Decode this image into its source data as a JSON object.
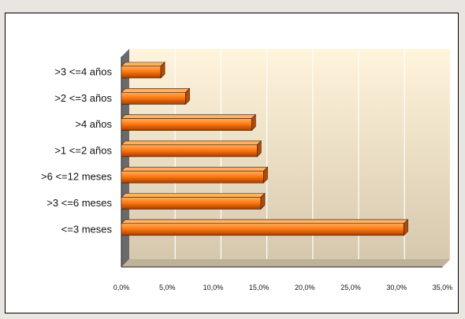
{
  "chart_data": {
    "type": "bar",
    "orientation": "horizontal",
    "style": "3d",
    "categories": [
      ">3 <=4 años",
      ">2 <=3 años",
      ">4 años",
      ">1 <=2 años",
      ">6 <=12 meses",
      ">3 <=6 meses",
      "<=3 meses"
    ],
    "values": [
      4.3,
      7.0,
      14.2,
      14.8,
      15.5,
      15.2,
      30.8
    ],
    "x_ticks": [
      "0,0%",
      "5,0%",
      "10,0%",
      "15,0%",
      "20,0%",
      "25,0%",
      "30,0%",
      "35,0%"
    ],
    "xlim": [
      0,
      35
    ],
    "title": "",
    "xlabel": "",
    "ylabel": "",
    "grid": true,
    "legend": "none",
    "colors": {
      "bar_top": "#ffb060",
      "bar_mid": "#ff7a12",
      "bar_bottom": "#a83e00",
      "bar_end": "#b24a06",
      "bar_outline": "#3a1500",
      "wall_warm": "#fff4dc",
      "wall_dark": "#d6c8ad",
      "side_wall": "#6a6a6a",
      "grid": "#ffffff"
    }
  }
}
